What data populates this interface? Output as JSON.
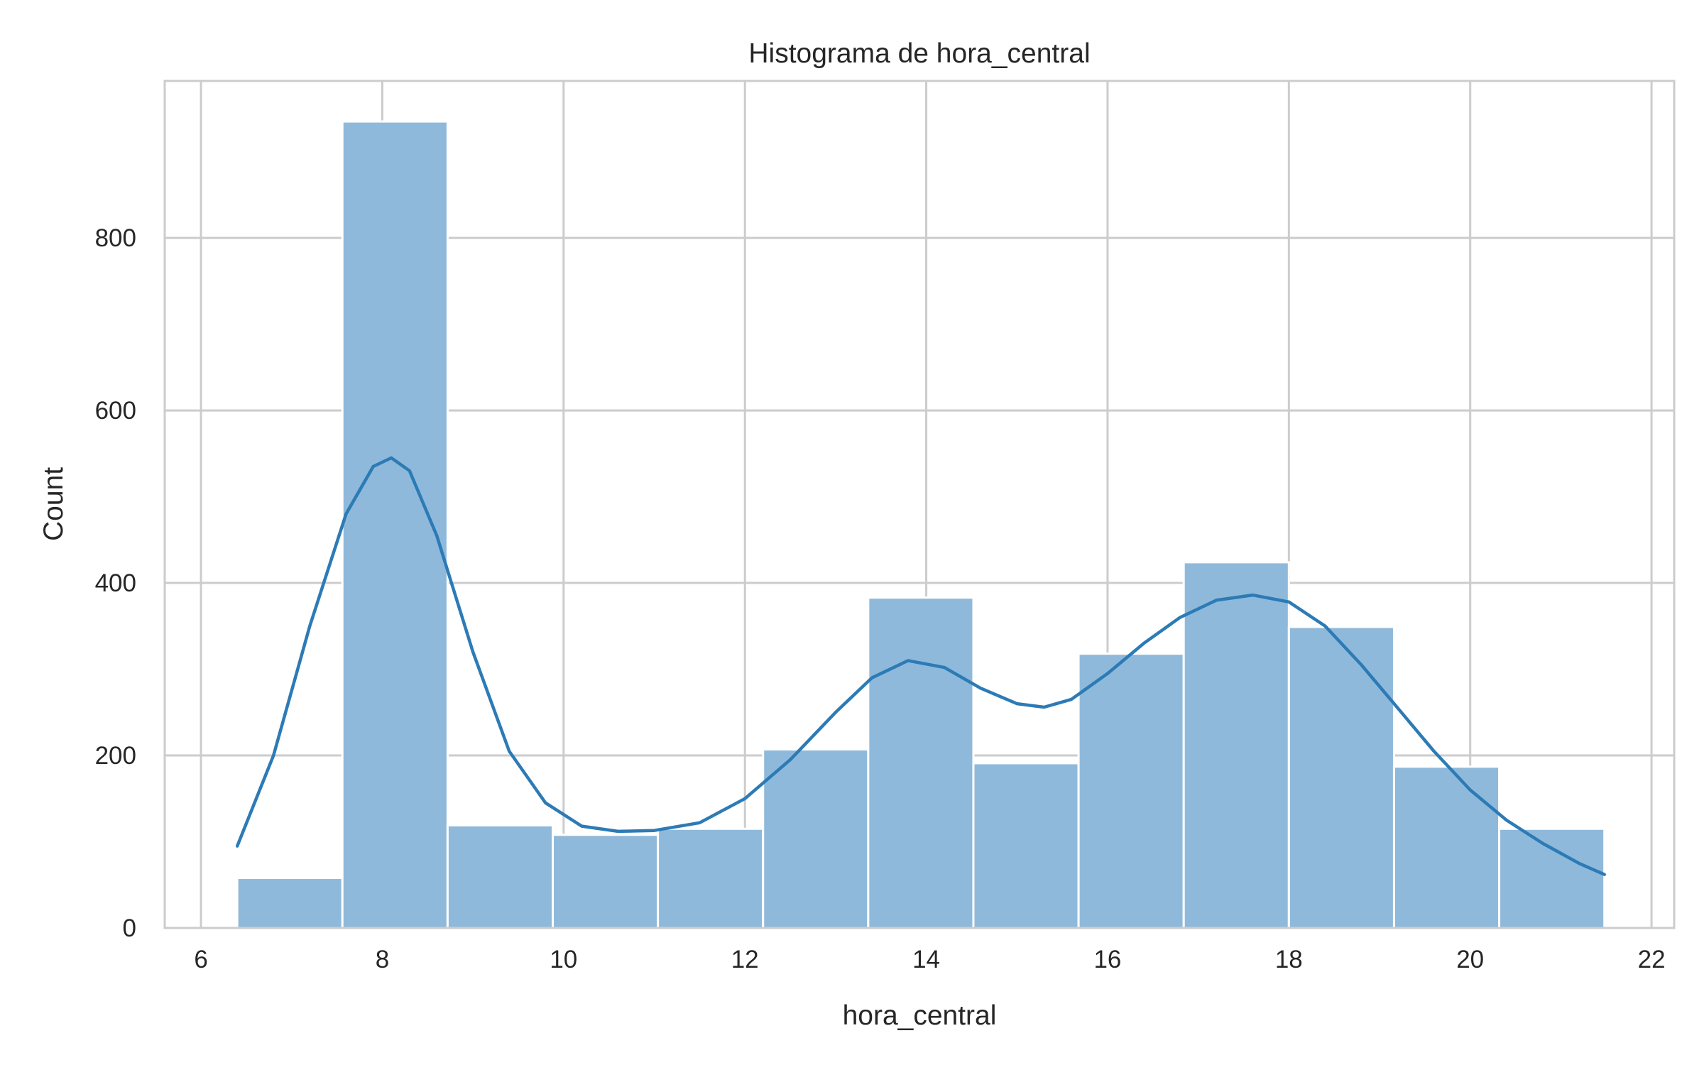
{
  "chart_data": {
    "type": "bar",
    "title": "Histograma de hora_central",
    "xlabel": "hora_central",
    "ylabel": "Count",
    "xlim": [
      5.6,
      22.25
    ],
    "ylim": [
      0,
      982
    ],
    "x_ticks": [
      6,
      8,
      10,
      12,
      14,
      16,
      18,
      20,
      22
    ],
    "y_ticks": [
      0,
      200,
      400,
      600,
      800
    ],
    "grid": true,
    "bins": [
      {
        "x0": 6.4,
        "x1": 7.56,
        "count": 58
      },
      {
        "x0": 7.56,
        "x1": 8.72,
        "count": 935
      },
      {
        "x0": 8.72,
        "x1": 9.88,
        "count": 119
      },
      {
        "x0": 9.88,
        "x1": 11.04,
        "count": 108
      },
      {
        "x0": 11.04,
        "x1": 12.2,
        "count": 115
      },
      {
        "x0": 12.2,
        "x1": 13.36,
        "count": 207
      },
      {
        "x0": 13.36,
        "x1": 14.52,
        "count": 383
      },
      {
        "x0": 14.52,
        "x1": 15.68,
        "count": 191
      },
      {
        "x0": 15.68,
        "x1": 16.84,
        "count": 318
      },
      {
        "x0": 16.84,
        "x1": 18.0,
        "count": 424
      },
      {
        "x0": 18.0,
        "x1": 19.16,
        "count": 349
      },
      {
        "x0": 19.16,
        "x1": 20.32,
        "count": 187
      },
      {
        "x0": 20.32,
        "x1": 21.48,
        "count": 115
      }
    ],
    "kde": {
      "x": [
        6.4,
        6.8,
        7.2,
        7.6,
        7.9,
        8.1,
        8.3,
        8.6,
        9.0,
        9.4,
        9.8,
        10.2,
        10.6,
        11.0,
        11.5,
        12.0,
        12.5,
        13.0,
        13.4,
        13.8,
        14.2,
        14.6,
        15.0,
        15.3,
        15.6,
        16.0,
        16.4,
        16.8,
        17.2,
        17.6,
        18.0,
        18.4,
        18.8,
        19.2,
        19.6,
        20.0,
        20.4,
        20.8,
        21.2,
        21.48
      ],
      "y": [
        95,
        200,
        350,
        480,
        535,
        545,
        530,
        455,
        320,
        205,
        145,
        118,
        112,
        113,
        122,
        150,
        195,
        250,
        290,
        310,
        302,
        278,
        260,
        256,
        265,
        295,
        330,
        360,
        380,
        386,
        378,
        350,
        305,
        255,
        205,
        160,
        125,
        98,
        75,
        62
      ]
    },
    "colors": {
      "bar_fill": "#8fb9da",
      "bar_stroke": "#ffffff",
      "kde_line": "#2c7bb6",
      "grid": "#cccccc",
      "frame": "#cccccc",
      "text": "#262626"
    }
  }
}
